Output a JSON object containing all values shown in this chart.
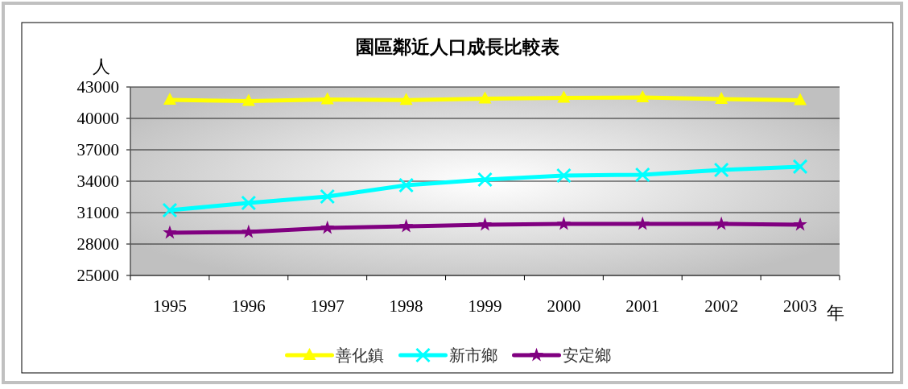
{
  "chart_data": {
    "type": "line",
    "title": "園區鄰近人口成長比較表",
    "ylabel": "人",
    "xlabel": "年",
    "categories": [
      "1995",
      "1996",
      "1997",
      "1998",
      "1999",
      "2000",
      "2001",
      "2002",
      "2003"
    ],
    "series": [
      {
        "name": "善化鎮",
        "color": "#ffff00",
        "marker": "triangle",
        "values": [
          41770,
          41650,
          41800,
          41750,
          41880,
          41960,
          42000,
          41850,
          41730
        ]
      },
      {
        "name": "新市鄉",
        "color": "#00ffff",
        "marker": "cross",
        "values": [
          31230,
          31920,
          32540,
          33620,
          34150,
          34540,
          34620,
          35080,
          35390
        ]
      },
      {
        "name": "安定鄉",
        "color": "#800080",
        "marker": "star",
        "values": [
          29080,
          29150,
          29540,
          29690,
          29850,
          29920,
          29920,
          29920,
          29850
        ]
      }
    ],
    "ylim": [
      25000,
      43000
    ],
    "yticks": [
      25000,
      28000,
      31000,
      34000,
      37000,
      40000,
      43000
    ],
    "grid": "y",
    "legend": "bottom",
    "line_style": "solid"
  }
}
